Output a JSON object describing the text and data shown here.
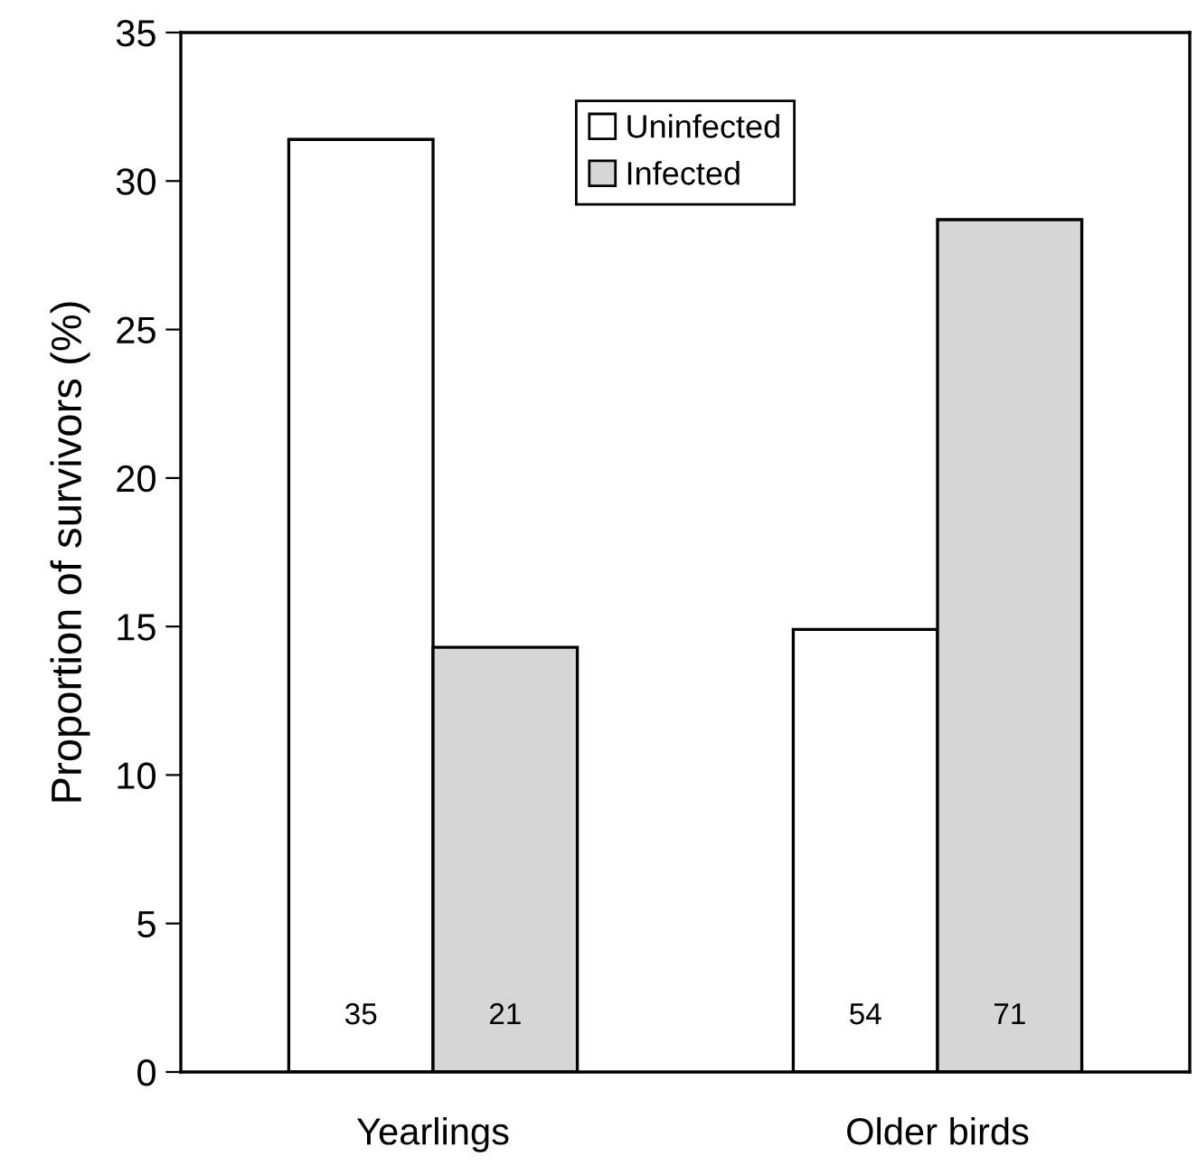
{
  "chart_data": {
    "type": "bar",
    "ylabel": "Proportion of survivors (%)",
    "categories": [
      "Yearlings",
      "Older birds"
    ],
    "series": [
      {
        "name": "Uninfected",
        "color": "#ffffff",
        "values": [
          31.4,
          14.9
        ]
      },
      {
        "name": "Infected",
        "color": "#d6d6d6",
        "values": [
          14.3,
          28.7
        ]
      }
    ],
    "annotations": [
      "35",
      "54",
      "21",
      "71"
    ],
    "ylim": [
      0,
      35
    ],
    "yticks": [
      0,
      5,
      10,
      15,
      20,
      25,
      30,
      35
    ],
    "grid": false,
    "legend": "top"
  }
}
